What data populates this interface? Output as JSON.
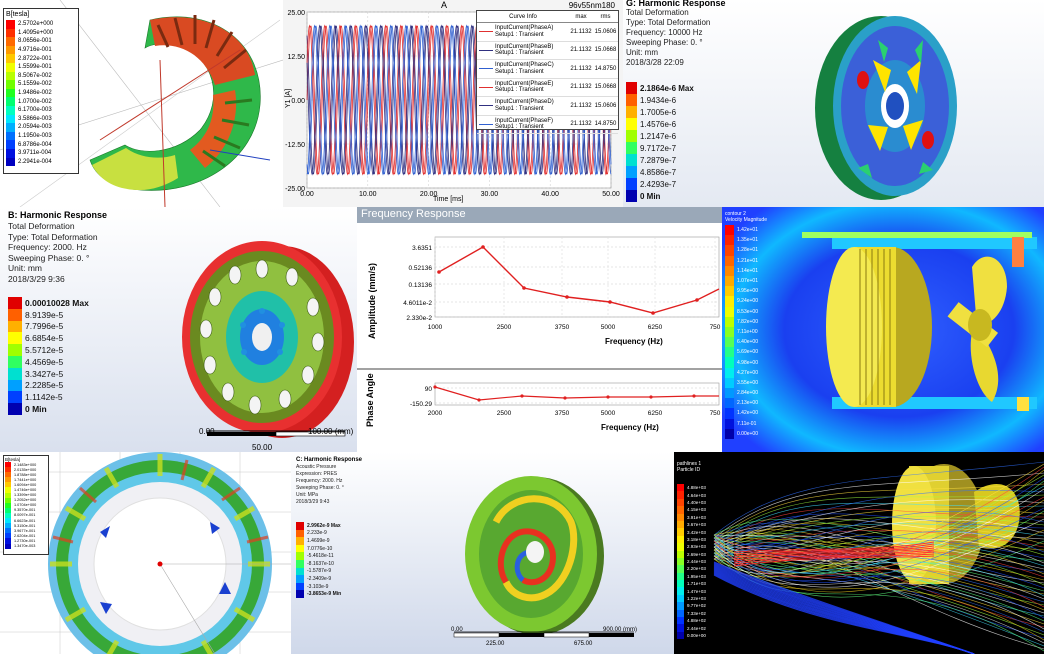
{
  "p1": {
    "legend_title": "B[tesla]",
    "legend_values": [
      "2.5702e+000",
      "1.4095e+000",
      "8.0656e-001",
      "4.9716e-001",
      "2.8722e-001",
      "1.5599e-001",
      "8.5067e-002",
      "5.1559e-002",
      "1.9486e-002",
      "1.0700e-002",
      "6.1700e-003",
      "3.5866e-003",
      "2.0594e-003",
      "1.1950e-003",
      "6.8786e-004",
      "3.9711e-004",
      "2.2941e-004"
    ],
    "legend_colors": [
      "#ff0000",
      "#ff3000",
      "#ff6a00",
      "#ff9a00",
      "#ffc800",
      "#f0ff00",
      "#b8ff00",
      "#70ff00",
      "#20ff20",
      "#00ff70",
      "#00ffc0",
      "#00e8ff",
      "#00b0ff",
      "#0070ff",
      "#0040ff",
      "#0010e0",
      "#0000c0"
    ]
  },
  "p2": {
    "title": "A",
    "corner_label": "96v55nm180",
    "ylabel": "Y1 [A]",
    "xlabel": "Time [ms]",
    "x_ticks": [
      "0.00",
      "10.00",
      "20.00",
      "30.00",
      "40.00",
      "50.00"
    ],
    "y_ticks": [
      "25.00",
      "12.50",
      "0.00",
      "-12.50",
      "-25.00"
    ],
    "table_header": [
      "Curve Info",
      "max",
      "rms"
    ],
    "table_rows": [
      {
        "l1": "InputCurrent(PhaseA)",
        "l2": "Setup1 : Transient",
        "max": "21.1132",
        "rms": "15.0606",
        "color": "#e03030"
      },
      {
        "l1": "InputCurrent(PhaseB)",
        "l2": "Setup1 : Transient",
        "max": "21.1132",
        "rms": "15.0668",
        "color": "#303080"
      },
      {
        "l1": "InputCurrent(PhaseC)",
        "l2": "Setup1 : Transient",
        "max": "21.1132",
        "rms": "14.8750",
        "color": "#3060d0"
      },
      {
        "l1": "InputCurrent(PhaseE)",
        "l2": "Setup1 : Transient",
        "max": "21.1132",
        "rms": "15.0668",
        "color": "#e03030"
      },
      {
        "l1": "InputCurrent(PhaseD)",
        "l2": "Setup1 : Transient",
        "max": "21.1132",
        "rms": "15.0606",
        "color": "#303080"
      },
      {
        "l1": "InputCurrent(PhaseF)",
        "l2": "Setup1 : Transient",
        "max": "21.1132",
        "rms": "14.8750",
        "color": "#3060d0"
      }
    ]
  },
  "p3": {
    "title": "G: Harmonic Response",
    "lines": [
      "Total Deformation",
      "Type: Total Deformation",
      "Frequency: 10000 Hz",
      "Sweeping Phase: 0. °",
      "Unit: mm",
      "2018/3/28 22:09"
    ],
    "legend_values": [
      "2.1864e-6 Max",
      "1.9434e-6",
      "1.7005e-6",
      "1.4576e-6",
      "1.2147e-6",
      "9.7172e-7",
      "7.2879e-7",
      "4.8586e-7",
      "2.4293e-7",
      "0 Min"
    ],
    "legend_colors": [
      "#e00000",
      "#ff6000",
      "#ffb000",
      "#ffff00",
      "#a0ff00",
      "#30ff60",
      "#00e0d0",
      "#00a0ff",
      "#0040ff",
      "#0000b0"
    ]
  },
  "p4": {
    "title": "B: Harmonic Response",
    "lines": [
      "Total Deformation",
      "Type: Total Deformation",
      "Frequency: 2000. Hz",
      "Sweeping Phase: 0. °",
      "Unit: mm",
      "2018/3/29 9:36"
    ],
    "legend_values": [
      "0.00010028 Max",
      "8.9139e-5",
      "7.7996e-5",
      "6.6854e-5",
      "5.5712e-5",
      "4.4569e-5",
      "3.3427e-5",
      "2.2285e-5",
      "1.1142e-5",
      "0 Min"
    ],
    "legend_colors": [
      "#e00000",
      "#ff6000",
      "#ffb000",
      "#ffff00",
      "#a0ff00",
      "#30ff60",
      "#00e0d0",
      "#00a0ff",
      "#0040ff",
      "#0000b0"
    ],
    "scale_left": "0.00",
    "scale_right": "100.00 (mm)",
    "scale_mid": "50.00"
  },
  "p5": {
    "title": "Frequency Response",
    "amp_ylabel": "Amplitude (mm/s)",
    "amp_y_ticks": [
      "3.6351",
      "0.52136",
      "0.13136",
      "4.6011e-2",
      "2.330e-2"
    ],
    "x_ticks": [
      "1000",
      "2500",
      "3750",
      "5000",
      "6250",
      "750"
    ],
    "xlabel": "Frequency (Hz)",
    "phase_ylabel": "Phase Angle",
    "phase_y_ticks": [
      "90",
      "-150.29"
    ],
    "phase_x_ticks": [
      "2000",
      "2500",
      "3750",
      "5000",
      "6250",
      "750"
    ],
    "phase_xlabel": "Frequency (Hz)"
  },
  "p6": {
    "legend_title": "contour 2",
    "legend_subtitle": "Velocity Magnitude",
    "legend_values": [
      "1.42e+01",
      "1.35e+01",
      "1.28e+01",
      "1.21e+01",
      "1.14e+01",
      "1.07e+01",
      "9.95e+00",
      "9.24e+00",
      "8.53e+00",
      "7.82e+00",
      "7.11e+00",
      "6.40e+00",
      "5.69e+00",
      "4.98e+00",
      "4.27e+00",
      "3.55e+00",
      "2.84e+00",
      "2.13e+00",
      "1.42e+00",
      "7.11e-01",
      "0.00e+00"
    ],
    "legend_colors": [
      "#ff0000",
      "#ff2200",
      "#ff4400",
      "#ff6600",
      "#ff8800",
      "#ffaa00",
      "#ffcc00",
      "#ffee00",
      "#eeff00",
      "#bbff00",
      "#88ff22",
      "#55ff55",
      "#22ff88",
      "#00ffbb",
      "#00eeee",
      "#00ccff",
      "#0099ff",
      "#0066ff",
      "#0033ff",
      "#0011dd",
      "#0000aa"
    ]
  },
  "p7": {
    "legend_title": "B[tesla]",
    "legend_values": [
      "2.1483e+000",
      "2.0135e+000",
      "1.8788e+000",
      "1.7441e+000",
      "1.6094e+000",
      "1.4746e+000",
      "1.3399e+000",
      "1.2052e+000",
      "1.0704e+000",
      "9.3570e-001",
      "8.0097e-001",
      "6.6623e-001",
      "5.3150e-001",
      "3.9677e-001",
      "2.6204e-001",
      "1.2730e-001",
      "1.3470e-003"
    ],
    "legend_colors": [
      "#ff0000",
      "#ff3000",
      "#ff6a00",
      "#ff9a00",
      "#ffc800",
      "#f0ff00",
      "#b8ff00",
      "#70ff00",
      "#20ff20",
      "#00ff70",
      "#00ffc0",
      "#00e8ff",
      "#00b0ff",
      "#0070ff",
      "#0040ff",
      "#0010e0",
      "#0000c0"
    ]
  },
  "p8": {
    "title": "C: Harmonic Response",
    "lines": [
      "Acoustic Pressure",
      "Expression: PRES",
      "Frequency: 2000. Hz",
      "Sweeping Phase: 0. °",
      "Unit: MPa",
      "2018/3/29 9:43"
    ],
    "legend_values": [
      "2.9962e-9 Max",
      "2.233e-9",
      "1.4699e-9",
      "7.0776e-10",
      "-5.4618e-11",
      "-8.1637e-10",
      "-1.5787e-9",
      "-2.3409e-9",
      "-3.103e-9",
      "-3.8653e-9 Min"
    ],
    "legend_colors": [
      "#e00000",
      "#ff6000",
      "#ffb000",
      "#ffff00",
      "#a0ff00",
      "#30ff60",
      "#00e0d0",
      "#00a0ff",
      "#0040ff",
      "#0000b0"
    ],
    "scale_left": "0.00",
    "scale_right": "900.00 (mm)",
    "scale_a": "225.00",
    "scale_b": "675.00"
  },
  "p9": {
    "legend_title": "pathlines 1",
    "legend_subtitle": "Particle ID",
    "legend_values": [
      "4.88e+03",
      "4.64e+03",
      "4.40e+03",
      "4.15e+03",
      "3.91e+03",
      "3.67e+03",
      "3.42e+03",
      "3.18e+03",
      "2.93e+03",
      "2.69e+03",
      "2.44e+03",
      "2.20e+03",
      "1.95e+03",
      "1.71e+03",
      "1.47e+03",
      "1.22e+03",
      "9.77e+02",
      "7.33e+02",
      "4.88e+02",
      "2.44e+02",
      "0.00e+00"
    ],
    "legend_colors": [
      "#ff0000",
      "#ff2200",
      "#ff4400",
      "#ff6600",
      "#ff8800",
      "#ffaa00",
      "#ffcc00",
      "#ffee00",
      "#eeff00",
      "#bbff00",
      "#88ff22",
      "#55ff55",
      "#22ff88",
      "#00ffbb",
      "#00eeee",
      "#00ccff",
      "#0099ff",
      "#0066ff",
      "#0033ff",
      "#0011dd",
      "#0000aa"
    ]
  }
}
